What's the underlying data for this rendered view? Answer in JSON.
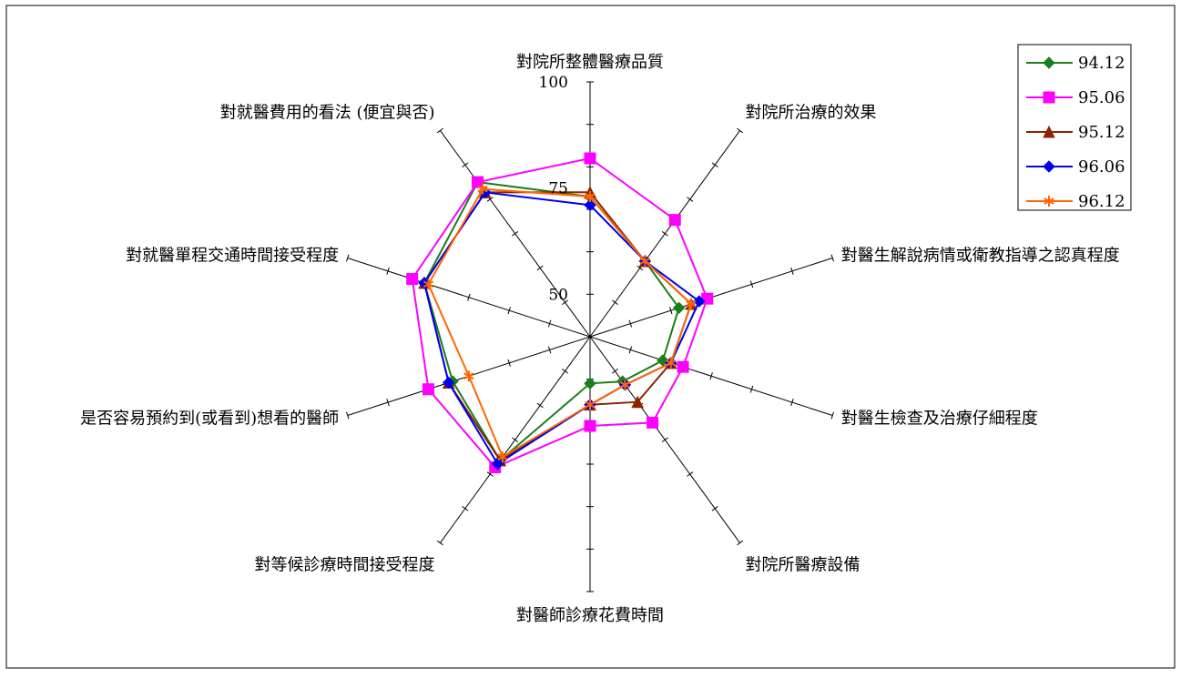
{
  "chart_data": {
    "type": "radar",
    "categories": [
      "對院所整體醫療品質",
      "對院所治療的效果",
      "對醫生解說病情或衛教指導之認真程度",
      "對醫生檢查及治療仔細程度",
      "對院所醫療設備",
      "對醫師診療花費時間",
      "對等候診療時間接受程度",
      "是否容易預約到(或看到)想看的醫師",
      "對就醫單程交通時間接受程度",
      "對就醫費用的看法 (便宜與否)"
    ],
    "axis_range": [
      40,
      100
    ],
    "tick_labels": [
      "50",
      "75",
      "100"
    ],
    "tick_values": [
      50,
      75,
      100
    ],
    "series": [
      {
        "name": "94.12",
        "color": "#1a7f1a",
        "marker": "diamond",
        "values": [
          73,
          62,
          62,
          58,
          53,
          51,
          76,
          74,
          81,
          85
        ]
      },
      {
        "name": "95.06",
        "color": "#ff00ff",
        "marker": "square",
        "values": [
          82,
          74,
          69,
          63,
          65,
          61,
          78,
          80,
          84,
          85
        ]
      },
      {
        "name": "95.12",
        "color": "#8b2500",
        "marker": "triangle",
        "values": [
          74,
          62,
          65,
          60,
          59,
          56,
          76,
          75,
          81,
          82
        ]
      },
      {
        "name": "96.06",
        "color": "#0000ee",
        "marker": "diamond",
        "values": [
          71,
          62,
          67,
          60,
          54,
          56,
          77,
          75,
          81,
          82
        ]
      },
      {
        "name": "96.12",
        "color": "#ff6600",
        "marker": "star",
        "values": [
          73,
          62,
          65,
          60,
          54,
          56,
          75,
          70,
          80,
          83
        ]
      }
    ],
    "legend": {
      "position": "top-right"
    },
    "gridlines": false
  }
}
